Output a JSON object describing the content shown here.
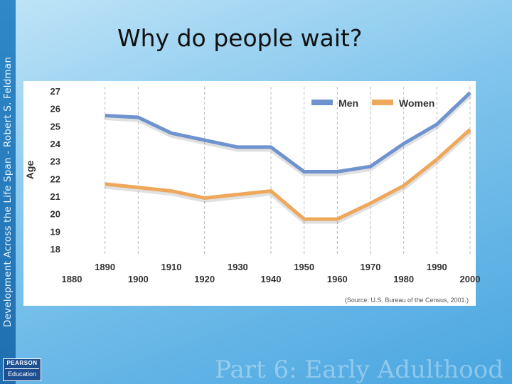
{
  "sidebar": {
    "text": "Development Across the Life Span - Robert S. Feldman"
  },
  "slide": {
    "title": "Why do people wait?"
  },
  "footer": {
    "text": "Part 6: Early Adulthood"
  },
  "logo": {
    "top": "PEARSON",
    "bottom": "Education"
  },
  "colors": {
    "men": "#6f93cf",
    "women": "#eea85c",
    "grid": "#bdbdbd"
  },
  "chart_data": {
    "type": "line",
    "title": "",
    "ylabel": "Age",
    "xlabel": "",
    "ylim": [
      18,
      27
    ],
    "yticks": [
      18,
      19,
      20,
      21,
      22,
      23,
      24,
      25,
      26,
      27
    ],
    "xlim": [
      1880,
      2000
    ],
    "xticks_upper": [
      1890,
      1910,
      1930,
      1950,
      1970,
      1990
    ],
    "xticks_lower": [
      1880,
      1900,
      1920,
      1940,
      1960,
      1980,
      2000
    ],
    "grid_x": [
      1890,
      1900,
      1920,
      1940,
      1950,
      1960,
      1970,
      1980,
      1990,
      2000
    ],
    "legend_position": "top-right",
    "source": "(Source: U.S. Bureau of the Census, 2001.)",
    "series": [
      {
        "name": "Men",
        "points": [
          [
            1890,
            25.6
          ],
          [
            1900,
            25.5
          ],
          [
            1910,
            24.6
          ],
          [
            1920,
            24.2
          ],
          [
            1930,
            23.8
          ],
          [
            1940,
            23.8
          ],
          [
            1950,
            22.4
          ],
          [
            1960,
            22.4
          ],
          [
            1970,
            22.7
          ],
          [
            1980,
            24.0
          ],
          [
            1990,
            25.1
          ],
          [
            2000,
            26.9
          ]
        ]
      },
      {
        "name": "Women",
        "points": [
          [
            1890,
            21.7
          ],
          [
            1900,
            21.5
          ],
          [
            1910,
            21.3
          ],
          [
            1920,
            20.9
          ],
          [
            1930,
            21.1
          ],
          [
            1940,
            21.3
          ],
          [
            1950,
            19.7
          ],
          [
            1960,
            19.7
          ],
          [
            1970,
            20.6
          ],
          [
            1980,
            21.6
          ],
          [
            1990,
            23.1
          ],
          [
            2000,
            24.8
          ]
        ]
      }
    ]
  }
}
